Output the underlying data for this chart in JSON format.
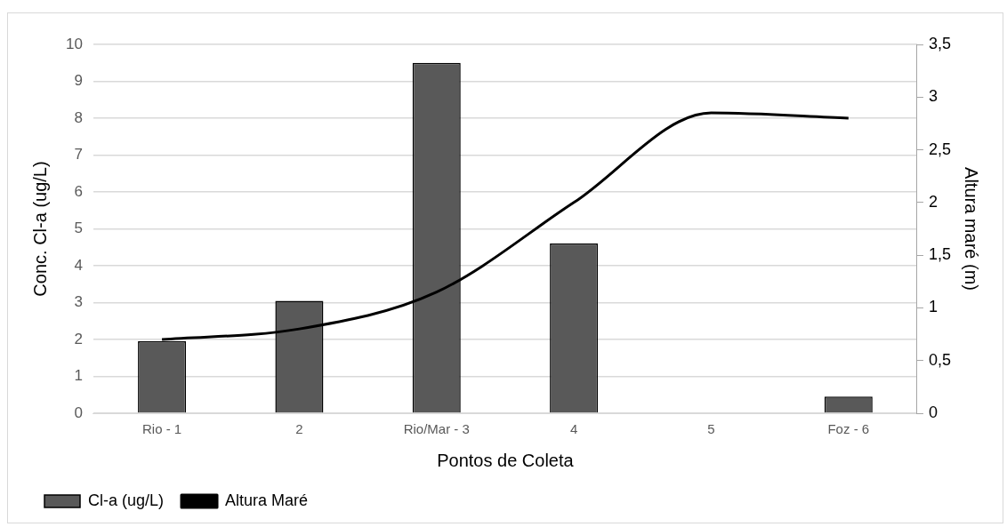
{
  "chart_data": {
    "type": "bar",
    "xlabel": "Pontos de Coleta",
    "ylabel": "Conc. Cl-a (ug/L)",
    "y2label": "Altura maré (m)",
    "categories": [
      "Rio - 1",
      "2",
      "Rio/Mar - 3",
      "4",
      "5",
      "Foz - 6"
    ],
    "series": [
      {
        "name": "Cl-a (ug/L)",
        "color": "#595959",
        "values": [
          1.95,
          3.05,
          9.5,
          4.6,
          null,
          0.45
        ]
      },
      {
        "name": "Altura Maré",
        "type": "line",
        "axis": "y2",
        "color": "#000000",
        "values": [
          0.7,
          0.8,
          1.15,
          2.0,
          2.85,
          2.8
        ]
      }
    ],
    "ylim": [
      0,
      10
    ],
    "yticks": [
      0,
      1,
      2,
      3,
      4,
      5,
      6,
      7,
      8,
      9,
      10
    ],
    "y2lim": [
      0,
      3.5
    ],
    "y2ticks": [
      0,
      {
        "value": 0.5,
        "label": "0,5"
      },
      1,
      {
        "value": 1.5,
        "label": "1,5"
      },
      2,
      {
        "value": 2.5,
        "label": "2,5"
      },
      3,
      {
        "value": 3.5,
        "label": "3,5"
      }
    ],
    "grid": "y",
    "legend": "bottom",
    "marker": "none",
    "line_style": "solid"
  }
}
